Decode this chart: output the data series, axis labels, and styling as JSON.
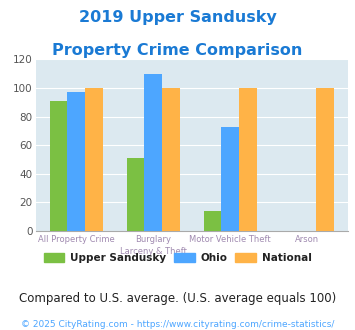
{
  "title_line1": "2019 Upper Sandusky",
  "title_line2": "Property Crime Comparison",
  "cat_labels_line1": [
    "All Property Crime",
    "Burglary",
    "Motor Vehicle Theft",
    "Arson"
  ],
  "cat_labels_line2": [
    "",
    "Larceny & Theft",
    "",
    ""
  ],
  "upper_sandusky": [
    91,
    51,
    14,
    0
  ],
  "ohio": [
    97,
    110,
    73,
    0
  ],
  "national": [
    100,
    100,
    100,
    100
  ],
  "colors": {
    "upper_sandusky": "#7bc043",
    "ohio": "#4da6ff",
    "national": "#ffb347"
  },
  "ylim": [
    0,
    120
  ],
  "yticks": [
    0,
    20,
    40,
    60,
    80,
    100,
    120
  ],
  "title_color": "#1a7ad4",
  "axis_label_color": "#a08ab0",
  "legend_labels": [
    "Upper Sandusky",
    "Ohio",
    "National"
  ],
  "footnote": "Compared to U.S. average. (U.S. average equals 100)",
  "copyright": "© 2025 CityRating.com - https://www.cityrating.com/crime-statistics/",
  "bg_color": "#dce9f0",
  "fig_bg": "#ffffff",
  "title_fontsize": 11.5,
  "footnote_fontsize": 8.5,
  "copyright_fontsize": 6.5
}
